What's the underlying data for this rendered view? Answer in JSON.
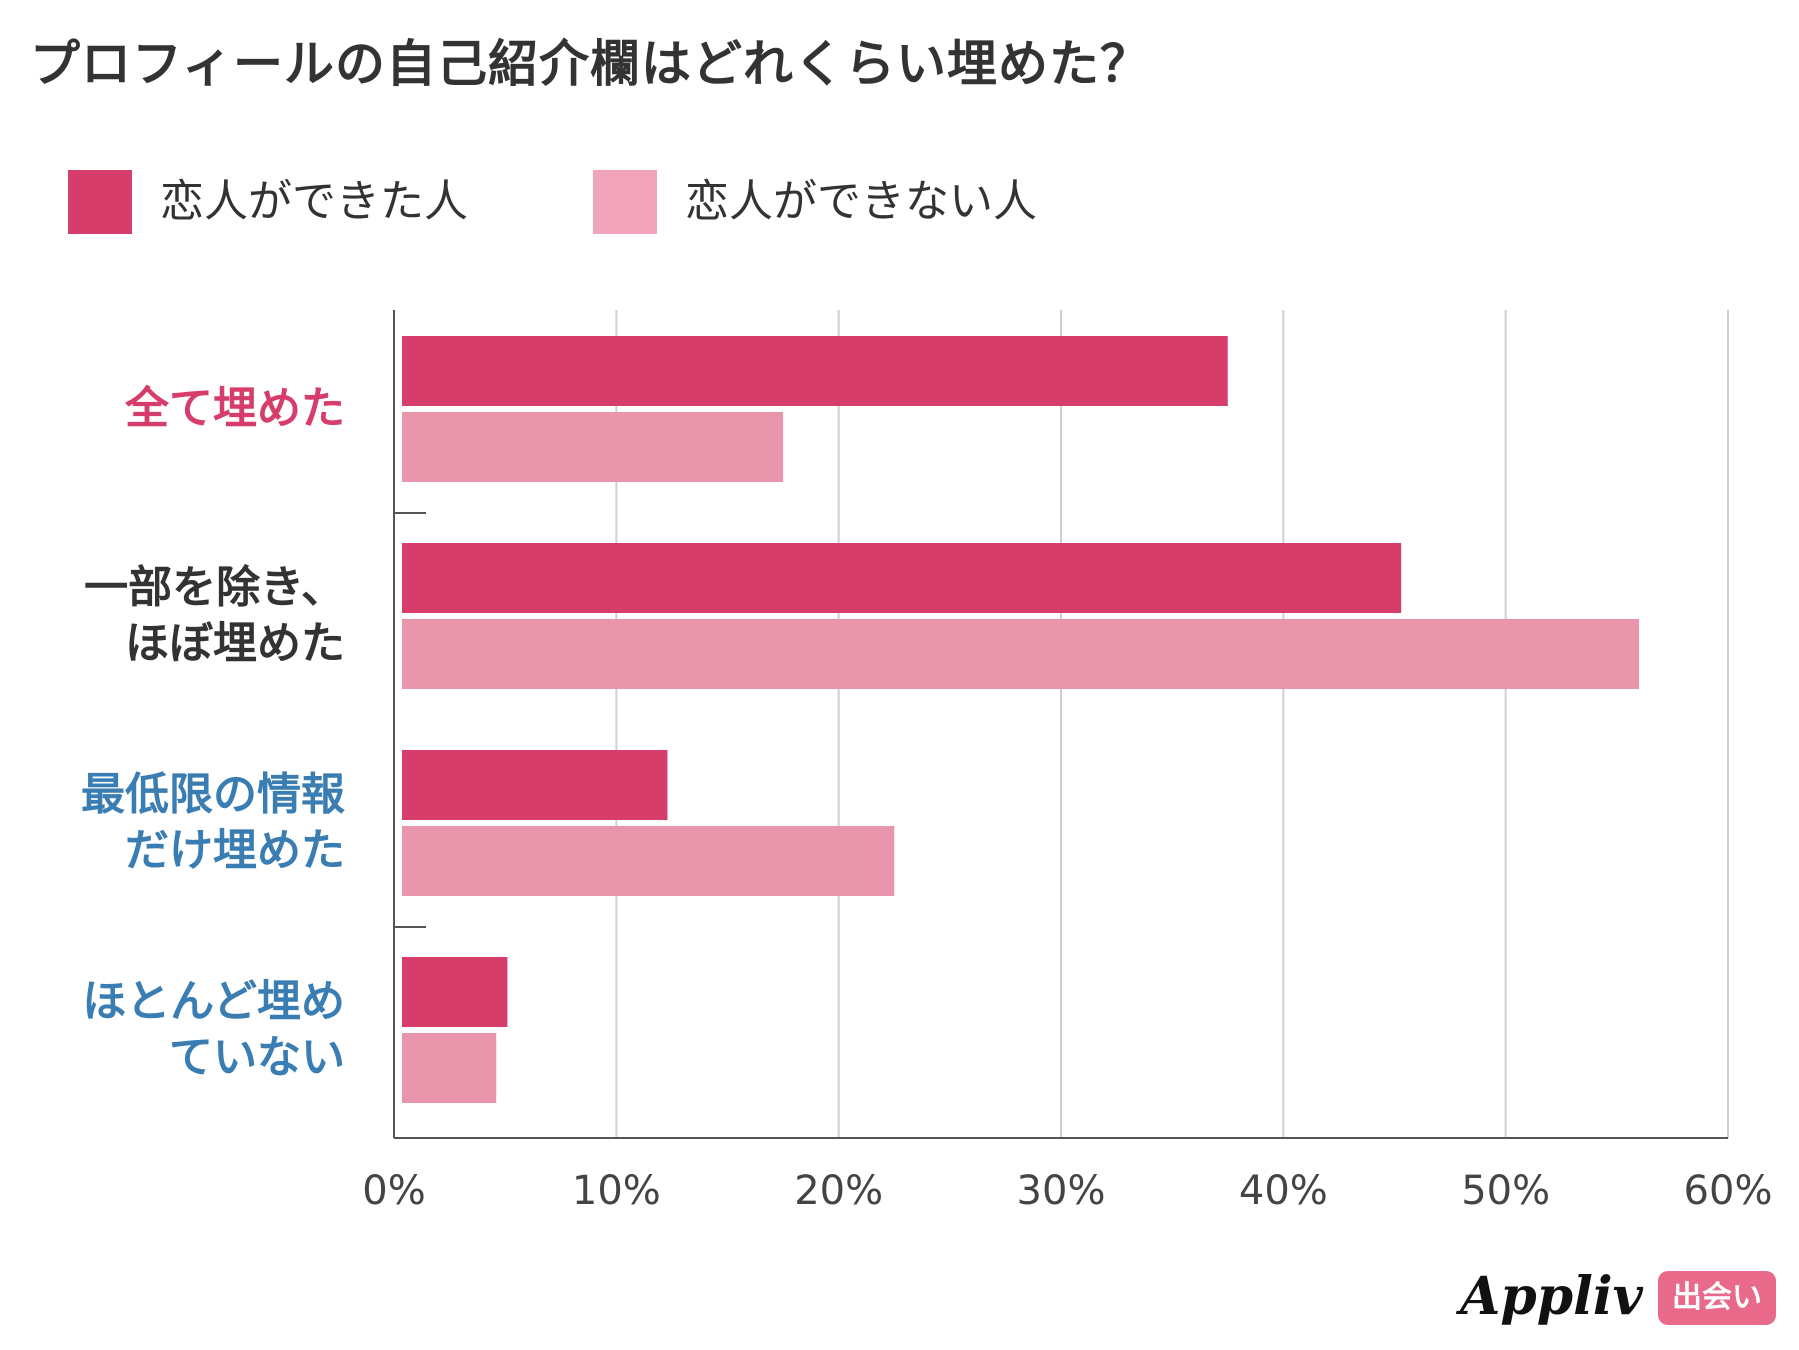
{
  "chart_data": {
    "type": "bar",
    "orientation": "horizontal",
    "title": "プロフィールの自己紹介欄はどれくらい埋めた？",
    "categories": [
      "全て埋めた",
      "一部を除き、\nほぼ埋めた",
      "最低限の情報\nだけ埋めた",
      "ほとんど埋め\nていない"
    ],
    "category_colors": [
      "#d63d6b",
      "#333333",
      "#3a7db2",
      "#3a7db2"
    ],
    "series": [
      {
        "name": "恋人ができた人",
        "color": "#d63d6b",
        "values": [
          37.5,
          45.3,
          12.3,
          5.1
        ]
      },
      {
        "name": "恋人ができない人",
        "color": "#e996ad",
        "values": [
          17.5,
          56.0,
          22.5,
          4.6
        ]
      }
    ],
    "xlim": [
      0,
      60
    ],
    "xticks": [
      "0%",
      "10%",
      "20%",
      "30%",
      "40%",
      "50%",
      "60%"
    ],
    "grid": true,
    "legend_position": "top-left"
  },
  "logo": {
    "text": "Appliv",
    "badge": "出会い"
  }
}
